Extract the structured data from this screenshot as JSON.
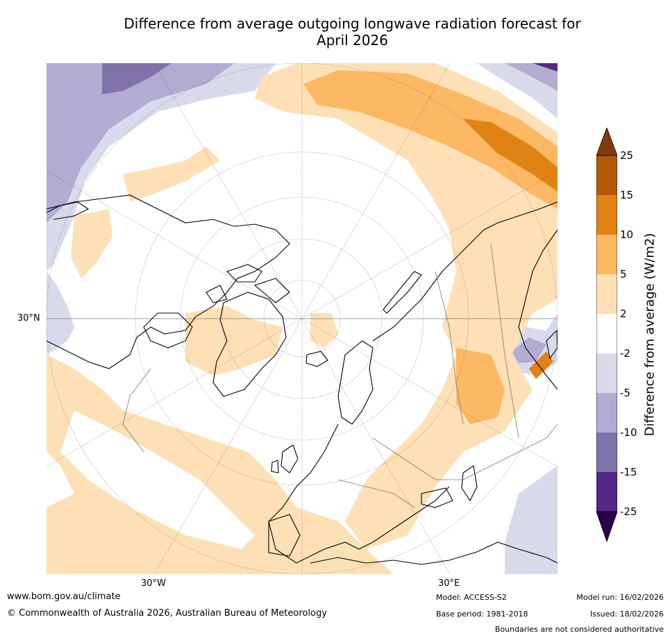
{
  "title": {
    "line1": "Difference from average outgoing longwave radiation forecast for",
    "line2": "April 2026"
  },
  "map": {
    "projection": "north polar stereographic",
    "lat_labels": [
      "30°N"
    ],
    "lon_labels": [
      "30°W",
      "30°E"
    ]
  },
  "legend": {
    "label": "Difference from average (W/m2)",
    "ticks": [
      "25",
      "15",
      "10",
      "5",
      "2",
      "-2",
      "-5",
      "-10",
      "-15",
      "-25"
    ],
    "colors": {
      "above_25": "#7f3b08",
      "15_25": "#b35806",
      "10_15": "#e08214",
      "5_10": "#fdb863",
      "2_5": "#fee0b6",
      "neutral": "#ffffff",
      "m5_m2": "#d8daeb",
      "m10_m5": "#b2abd2",
      "m15_m10": "#8073ac",
      "m25_m15": "#542788",
      "below_m25": "#2d004b"
    }
  },
  "footer": {
    "website": "www.bom.gov.au/climate",
    "copyright": "© Commonwealth of Australia 2026, Australian Bureau of Meteorology",
    "model": "Model: ACCESS-S2",
    "base_period": "Base period: 1981-2018",
    "model_run": "Model run: 16/02/2026",
    "issued": "Issued: 18/02/2026",
    "disclaimer": "Boundaries are not considered authoritative"
  }
}
